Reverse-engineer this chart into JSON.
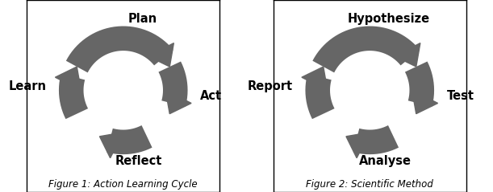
{
  "fig_width": 6.11,
  "fig_height": 2.39,
  "dpi": 100,
  "arrow_color": "#666666",
  "background_color": "#ffffff",
  "border_color": "#000000",
  "text_color": "#000000",
  "left_labels": {
    "top": "Plan",
    "right": "Act",
    "bottom": "Reflect",
    "left": "Learn"
  },
  "right_labels": {
    "top": "Hypothesize",
    "right": "Test",
    "bottom": "Analyse",
    "left": "Report"
  },
  "left_caption": "Figure 1: Action Learning Cycle",
  "right_caption": "Figure 2: Scientific Method",
  "caption_fontsize": 8.5,
  "label_fontsize": 10.5,
  "label_fontweight": "bold"
}
